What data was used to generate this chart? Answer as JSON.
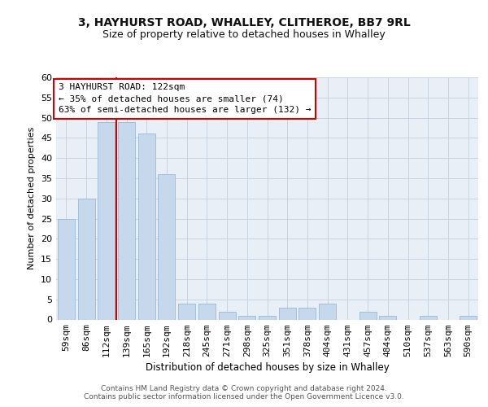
{
  "title1": "3, HAYHURST ROAD, WHALLEY, CLITHEROE, BB7 9RL",
  "title2": "Size of property relative to detached houses in Whalley",
  "xlabel": "Distribution of detached houses by size in Whalley",
  "ylabel": "Number of detached properties",
  "categories": [
    "59sqm",
    "86sqm",
    "112sqm",
    "139sqm",
    "165sqm",
    "192sqm",
    "218sqm",
    "245sqm",
    "271sqm",
    "298sqm",
    "325sqm",
    "351sqm",
    "378sqm",
    "404sqm",
    "431sqm",
    "457sqm",
    "484sqm",
    "510sqm",
    "537sqm",
    "563sqm",
    "590sqm"
  ],
  "values": [
    25,
    30,
    49,
    49,
    46,
    36,
    4,
    4,
    2,
    1,
    1,
    3,
    3,
    4,
    0,
    2,
    1,
    0,
    1,
    0,
    1
  ],
  "bar_color": "#c5d8ec",
  "bar_edge_color": "#9bbad4",
  "grid_color": "#c8d4e0",
  "vline_color": "#cc0000",
  "vline_x": 2.5,
  "annotation_line1": "3 HAYHURST ROAD: 122sqm",
  "annotation_line2": "← 35% of detached houses are smaller (74)",
  "annotation_line3": "63% of semi-detached houses are larger (132) →",
  "ylim": [
    0,
    60
  ],
  "yticks": [
    0,
    5,
    10,
    15,
    20,
    25,
    30,
    35,
    40,
    45,
    50,
    55,
    60
  ],
  "footer_text": "Contains HM Land Registry data © Crown copyright and database right 2024.\nContains public sector information licensed under the Open Government Licence v3.0.",
  "fig_bg_color": "#ffffff",
  "ax_bg_color": "#e8eff7"
}
